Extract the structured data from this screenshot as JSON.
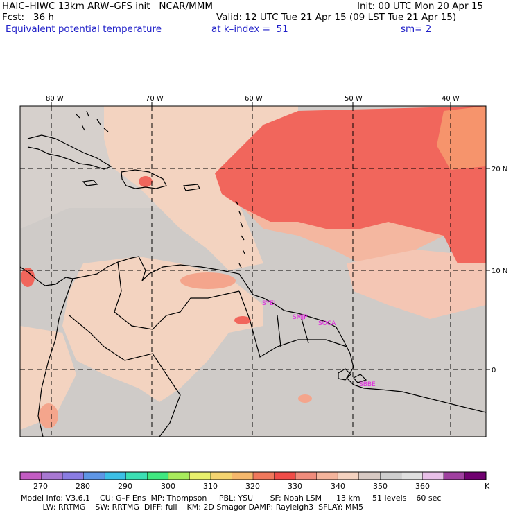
{
  "header": {
    "line1_left": "HAIC–HIWC 13km ARW–GFS init   NCAR/MMM",
    "line1_right": "Init: 00 UTC Mon 20 Apr 15",
    "line2_left": "Fcst:   36 h",
    "line2_right": "Valid: 12 UTC Tue 21 Apr 15 (09 LST Tue 21 Apr 15)",
    "line3_left": "Equivalent potential temperature",
    "line3_mid": "at k–index =  51",
    "line3_right": "sm= 2"
  },
  "map": {
    "lon_labels": [
      "80 W",
      "70 W",
      "60 W",
      "50 W",
      "40 W"
    ],
    "lat_labels": [
      "20 N",
      "10 N",
      "0"
    ],
    "stations": [
      "SYEI",
      "SMJP",
      "SOCA",
      "SBBE"
    ]
  },
  "colorbar": {
    "labels": [
      "270",
      "280",
      "290",
      "300",
      "310",
      "320",
      "330",
      "340",
      "350",
      "360",
      "K"
    ],
    "colors": [
      "#c35cc3",
      "#a878d2",
      "#8a7ce3",
      "#5e96e6",
      "#3cc0e6",
      "#3be0b4",
      "#40e880",
      "#a8ec5c",
      "#e8f06c",
      "#f4d470",
      "#f6b86c",
      "#f0785c",
      "#f04c48",
      "#f08c7c",
      "#f4b49c",
      "#f4d2c0",
      "#d8cac4",
      "#cfcfcf",
      "#e0e0e0",
      "#e8c0e8",
      "#a040a0",
      "#700070"
    ]
  },
  "footer": {
    "line1": "Model Info: V3.6.1    CU: G–F Ens  MP: Thompson     PBL: YSU       SF: Noah LSM      13 km     51 levels    60 sec",
    "line2": "         LW: RRTMG    SW: RRTMG  DIFF: full    KM: 2D Smagor DAMP: Rayleigh3  SFLAY: MM5"
  }
}
